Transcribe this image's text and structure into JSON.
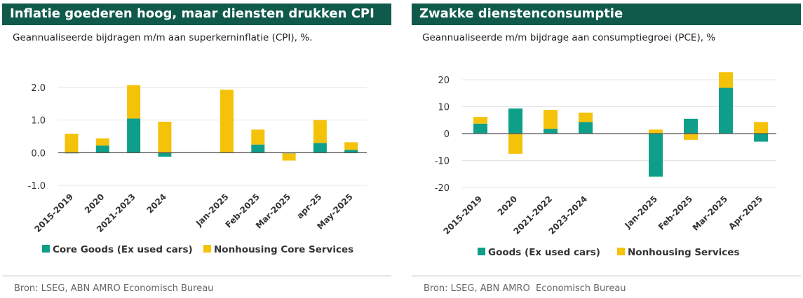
{
  "charts": [
    {
      "title": "Inflatie goederen hoog, maar diensten drukken CPI",
      "subtitle": "Geannualiseerde bijdragen m/m aan superkerninflatie (CPI), %.",
      "source": "Bron: LSEG, ABN AMRO Economisch Bureau"
    },
    {
      "title": "Zwakke dienstenconsumptie",
      "subtitle": "Geannualiseerde m/m bijdrage aan consumptiegroei (PCE), %",
      "source": "Bron: LSEG, ABN AMRO  Economisch Bureau"
    }
  ],
  "colors": {
    "teal": "#0e9f8a",
    "yellow": "#f5c20a",
    "header": "#0f5a4b",
    "grid": "#e4e4e4",
    "zero": "#555555"
  },
  "chart_data": [
    {
      "type": "bar",
      "stacked": true,
      "categories": [
        "2015-2019",
        "2020",
        "2021-2023",
        "2024",
        "",
        "Jan-2025",
        "Feb-2025",
        "Mar-2025",
        "apr-25",
        "May-2025"
      ],
      "series": [
        {
          "name": "Core Goods (Ex used cars)",
          "color": "#0e9f8a",
          "values": [
            -0.02,
            0.22,
            1.05,
            -0.12,
            null,
            0.0,
            0.25,
            -0.02,
            0.3,
            0.09
          ]
        },
        {
          "name": "Nonhousing Core Services",
          "color": "#f5c20a",
          "values": [
            0.58,
            0.22,
            1.02,
            0.95,
            null,
            1.93,
            0.46,
            -0.22,
            0.7,
            0.23
          ]
        }
      ],
      "ylim": [
        -1.0,
        2.0
      ],
      "yticks": [
        "-1.0",
        "0.0",
        "1.0",
        "2.0"
      ],
      "ytick_values": [
        -1.0,
        0.0,
        1.0,
        2.0
      ],
      "grid": true,
      "legend": "bottom"
    },
    {
      "type": "bar",
      "stacked": true,
      "categories": [
        "2015-2019",
        "2020",
        "2021-2022",
        "2023-2024",
        "",
        "Jan-2025",
        "Feb-2025",
        "Mar-2025",
        "Apr-2025"
      ],
      "series": [
        {
          "name": "Goods (Ex used cars)",
          "color": "#0e9f8a",
          "values": [
            3.7,
            9.3,
            1.8,
            4.3,
            null,
            -16.0,
            5.5,
            17.0,
            -3.0
          ]
        },
        {
          "name": "Nonhousing Services",
          "color": "#f5c20a",
          "values": [
            2.5,
            -7.5,
            7.0,
            3.5,
            null,
            1.5,
            -2.3,
            5.8,
            4.3
          ]
        }
      ],
      "ylim": [
        -20,
        20
      ],
      "yticks": [
        "-20",
        "-10",
        "0",
        "10",
        "20"
      ],
      "ytick_values": [
        -20,
        -10,
        0,
        10,
        20
      ],
      "grid": true,
      "legend": "bottom"
    }
  ]
}
